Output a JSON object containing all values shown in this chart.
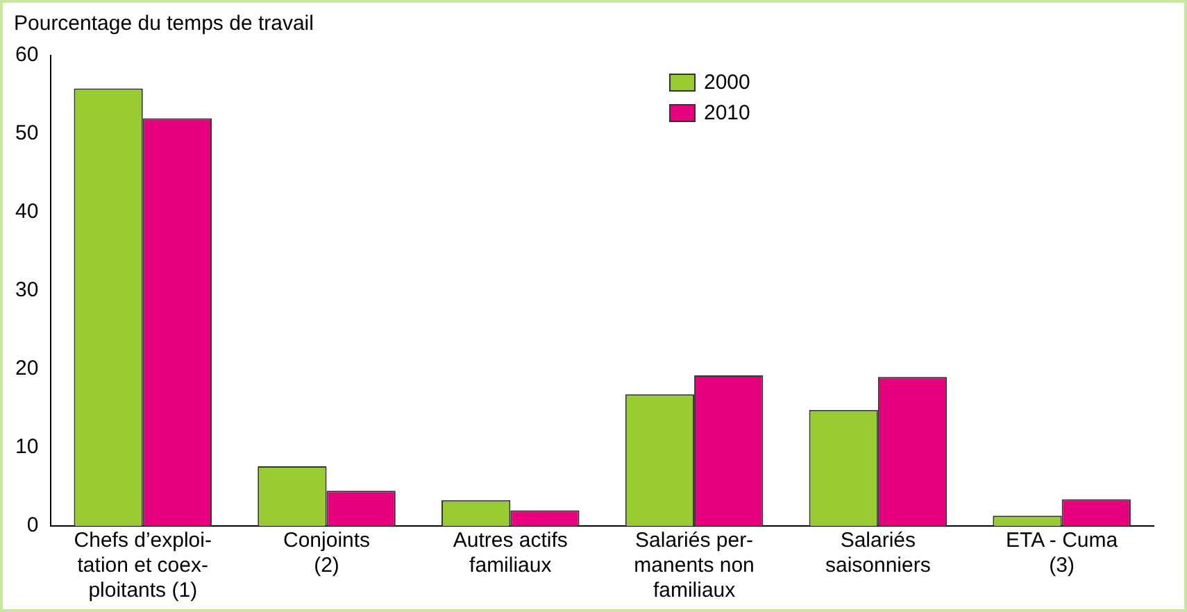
{
  "chart_data": {
    "type": "bar",
    "ylabel": "Pourcentage du temps de travail",
    "categories": [
      "Chefs d’exploi-\ntation et coex-\nploitants (1)",
      "Conjoints\n(2)",
      "Autres actifs\nfamiliaux",
      "Salariés per-\nmanents non\nfamiliaux",
      "Salariés\nsaisonniers",
      "ETA - Cuma\n(3)"
    ],
    "series": [
      {
        "name": "2000",
        "color": "#99cc33",
        "values": [
          55.8,
          7.6,
          3.3,
          16.8,
          14.8,
          1.3
        ]
      },
      {
        "name": "2010",
        "color": "#e6007e",
        "values": [
          52.0,
          4.5,
          2.0,
          19.2,
          19.0,
          3.4
        ]
      }
    ],
    "ylim": [
      0,
      60
    ],
    "yticks": [
      0,
      10,
      20,
      30,
      40,
      50,
      60
    ],
    "grid": false,
    "legend": "top"
  }
}
